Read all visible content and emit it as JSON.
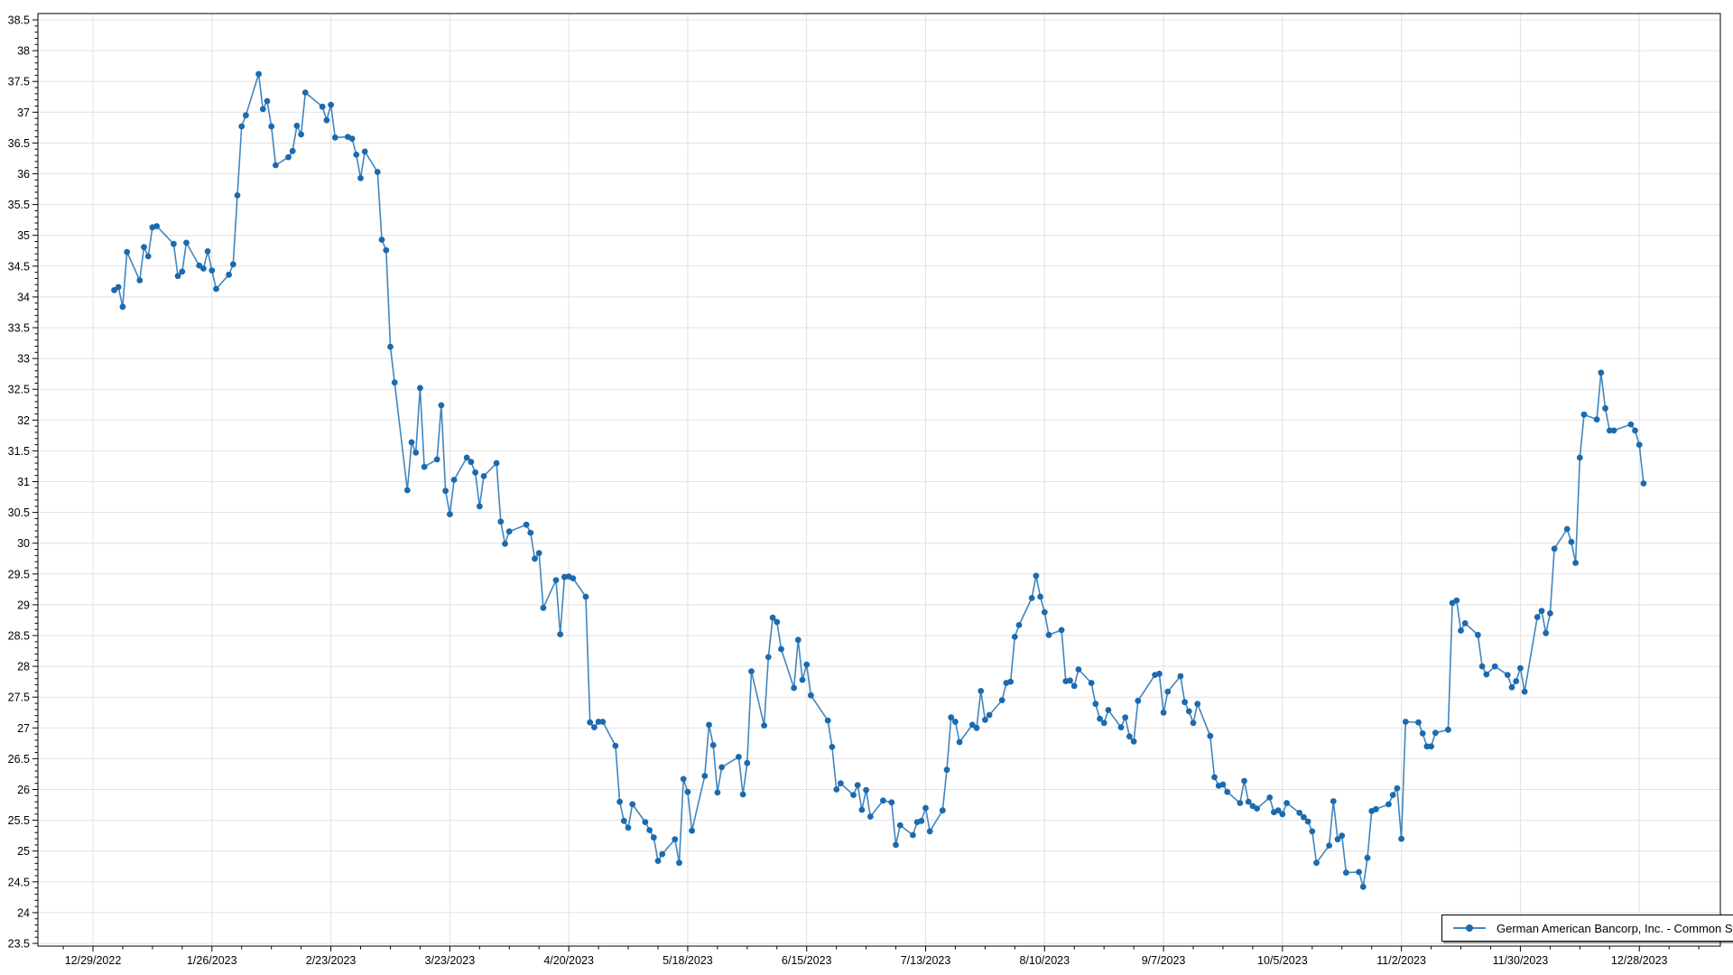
{
  "chart_data": {
    "type": "line",
    "title": "",
    "xlabel": "",
    "ylabel": "",
    "grid": true,
    "legend_position": "bottom-right",
    "line_color": "#4186c0",
    "marker_color": "#1b6aae",
    "gridline_color": "#e1e1e1",
    "axis_color": "#000000",
    "y_axis": {
      "min": 23.5,
      "max": 38.5,
      "major_step": 0.5,
      "minor_step": 0.1,
      "tick_labels": [
        "23.5",
        "24",
        "24.5",
        "25",
        "25.5",
        "26",
        "26.5",
        "27",
        "27.5",
        "28",
        "28.5",
        "29",
        "29.5",
        "30",
        "30.5",
        "31",
        "31.5",
        "32",
        "32.5",
        "33",
        "33.5",
        "34",
        "34.5",
        "35",
        "35.5",
        "36",
        "36.5",
        "37",
        "37.5",
        "38",
        "38.5"
      ]
    },
    "x_axis": {
      "tick_interval_days": 28,
      "minor_interval_days": 7,
      "tick_labels": [
        "12/29/2022",
        "1/26/2023",
        "2/23/2023",
        "3/23/2023",
        "4/20/2023",
        "5/18/2023",
        "6/15/2023",
        "7/13/2023",
        "8/10/2023",
        "9/7/2023",
        "10/5/2023",
        "11/2/2023",
        "11/30/2023",
        "12/28/2023"
      ]
    },
    "series": [
      {
        "name": "German American Bancorp, Inc. - Common Stock",
        "points": [
          [
            "1/3/2023",
            34.11
          ],
          [
            "1/4/2023",
            34.16
          ],
          [
            "1/5/2023",
            33.84
          ],
          [
            "1/6/2023",
            34.73
          ],
          [
            "1/9/2023",
            34.27
          ],
          [
            "1/10/2023",
            34.81
          ],
          [
            "1/11/2023",
            34.66
          ],
          [
            "1/12/2023",
            35.13
          ],
          [
            "1/13/2023",
            35.15
          ],
          [
            "1/17/2023",
            34.86
          ],
          [
            "1/18/2023",
            34.34
          ],
          [
            "1/19/2023",
            34.41
          ],
          [
            "1/20/2023",
            34.88
          ],
          [
            "1/23/2023",
            34.51
          ],
          [
            "1/24/2023",
            34.46
          ],
          [
            "1/25/2023",
            34.74
          ],
          [
            "1/26/2023",
            34.43
          ],
          [
            "1/27/2023",
            34.13
          ],
          [
            "1/30/2023",
            34.36
          ],
          [
            "1/31/2023",
            34.53
          ],
          [
            "2/1/2023",
            35.65
          ],
          [
            "2/2/2023",
            36.77
          ],
          [
            "2/3/2023",
            36.95
          ],
          [
            "2/6/2023",
            37.62
          ],
          [
            "2/7/2023",
            37.05
          ],
          [
            "2/8/2023",
            37.18
          ],
          [
            "2/9/2023",
            36.77
          ],
          [
            "2/10/2023",
            36.14
          ],
          [
            "2/13/2023",
            36.27
          ],
          [
            "2/14/2023",
            36.37
          ],
          [
            "2/15/2023",
            36.78
          ],
          [
            "2/16/2023",
            36.64
          ],
          [
            "2/17/2023",
            37.32
          ],
          [
            "2/21/2023",
            37.09
          ],
          [
            "2/22/2023",
            36.87
          ],
          [
            "2/23/2023",
            37.12
          ],
          [
            "2/24/2023",
            36.59
          ],
          [
            "2/27/2023",
            36.6
          ],
          [
            "2/28/2023",
            36.57
          ],
          [
            "3/1/2023",
            36.31
          ],
          [
            "3/2/2023",
            35.93
          ],
          [
            "3/3/2023",
            36.36
          ],
          [
            "3/6/2023",
            36.03
          ],
          [
            "3/7/2023",
            34.93
          ],
          [
            "3/8/2023",
            34.76
          ],
          [
            "3/9/2023",
            33.19
          ],
          [
            "3/10/2023",
            32.61
          ],
          [
            "3/13/2023",
            30.86
          ],
          [
            "3/14/2023",
            31.64
          ],
          [
            "3/15/2023",
            31.47
          ],
          [
            "3/16/2023",
            32.52
          ],
          [
            "3/17/2023",
            31.24
          ],
          [
            "3/20/2023",
            31.36
          ],
          [
            "3/21/2023",
            32.24
          ],
          [
            "3/22/2023",
            30.85
          ],
          [
            "3/23/2023",
            30.47
          ],
          [
            "3/24/2023",
            31.03
          ],
          [
            "3/27/2023",
            31.39
          ],
          [
            "3/28/2023",
            31.32
          ],
          [
            "3/29/2023",
            31.15
          ],
          [
            "3/30/2023",
            30.6
          ],
          [
            "3/31/2023",
            31.09
          ],
          [
            "4/3/2023",
            31.3
          ],
          [
            "4/4/2023",
            30.35
          ],
          [
            "4/5/2023",
            29.99
          ],
          [
            "4/6/2023",
            30.19
          ],
          [
            "4/10/2023",
            30.3
          ],
          [
            "4/11/2023",
            30.17
          ],
          [
            "4/12/2023",
            29.75
          ],
          [
            "4/13/2023",
            29.84
          ],
          [
            "4/14/2023",
            28.95
          ],
          [
            "4/17/2023",
            29.4
          ],
          [
            "4/18/2023",
            28.52
          ],
          [
            "4/19/2023",
            29.45
          ],
          [
            "4/20/2023",
            29.46
          ],
          [
            "4/21/2023",
            29.43
          ],
          [
            "4/24/2023",
            29.13
          ],
          [
            "4/25/2023",
            27.09
          ],
          [
            "4/26/2023",
            27.01
          ],
          [
            "4/27/2023",
            27.1
          ],
          [
            "4/28/2023",
            27.1
          ],
          [
            "5/1/2023",
            26.71
          ],
          [
            "5/2/2023",
            25.8
          ],
          [
            "5/3/2023",
            25.49
          ],
          [
            "5/4/2023",
            25.38
          ],
          [
            "5/5/2023",
            25.76
          ],
          [
            "5/8/2023",
            25.47
          ],
          [
            "5/9/2023",
            25.34
          ],
          [
            "5/10/2023",
            25.22
          ],
          [
            "5/11/2023",
            24.84
          ],
          [
            "5/12/2023",
            24.95
          ],
          [
            "5/15/2023",
            25.19
          ],
          [
            "5/16/2023",
            24.81
          ],
          [
            "5/17/2023",
            26.17
          ],
          [
            "5/18/2023",
            25.96
          ],
          [
            "5/19/2023",
            25.33
          ],
          [
            "5/22/2023",
            26.22
          ],
          [
            "5/23/2023",
            27.05
          ],
          [
            "5/24/2023",
            26.72
          ],
          [
            "5/25/2023",
            25.95
          ],
          [
            "5/26/2023",
            26.36
          ],
          [
            "5/30/2023",
            26.53
          ],
          [
            "5/31/2023",
            25.92
          ],
          [
            "6/1/2023",
            26.43
          ],
          [
            "6/2/2023",
            27.92
          ],
          [
            "6/5/2023",
            27.04
          ],
          [
            "6/6/2023",
            28.15
          ],
          [
            "6/7/2023",
            28.79
          ],
          [
            "6/8/2023",
            28.72
          ],
          [
            "6/9/2023",
            28.28
          ],
          [
            "6/12/2023",
            27.65
          ],
          [
            "6/13/2023",
            28.43
          ],
          [
            "6/14/2023",
            27.78
          ],
          [
            "6/15/2023",
            28.03
          ],
          [
            "6/16/2023",
            27.53
          ],
          [
            "6/20/2023",
            27.12
          ],
          [
            "6/21/2023",
            26.69
          ],
          [
            "6/22/2023",
            26.0
          ],
          [
            "6/23/2023",
            26.1
          ],
          [
            "6/26/2023",
            25.91
          ],
          [
            "6/27/2023",
            26.07
          ],
          [
            "6/28/2023",
            25.67
          ],
          [
            "6/29/2023",
            25.99
          ],
          [
            "6/30/2023",
            25.56
          ],
          [
            "7/3/2023",
            25.82
          ],
          [
            "7/5/2023",
            25.79
          ],
          [
            "7/6/2023",
            25.1
          ],
          [
            "7/7/2023",
            25.42
          ],
          [
            "7/10/2023",
            25.26
          ],
          [
            "7/11/2023",
            25.47
          ],
          [
            "7/12/2023",
            25.49
          ],
          [
            "7/13/2023",
            25.7
          ],
          [
            "7/14/2023",
            25.32
          ],
          [
            "7/17/2023",
            25.66
          ],
          [
            "7/18/2023",
            26.32
          ],
          [
            "7/19/2023",
            27.17
          ],
          [
            "7/20/2023",
            27.1
          ],
          [
            "7/21/2023",
            26.77
          ],
          [
            "7/24/2023",
            27.05
          ],
          [
            "7/25/2023",
            27.0
          ],
          [
            "7/26/2023",
            27.6
          ],
          [
            "7/27/2023",
            27.13
          ],
          [
            "7/28/2023",
            27.21
          ],
          [
            "7/31/2023",
            27.45
          ],
          [
            "8/1/2023",
            27.73
          ],
          [
            "8/2/2023",
            27.75
          ],
          [
            "8/3/2023",
            28.48
          ],
          [
            "8/4/2023",
            28.67
          ],
          [
            "8/7/2023",
            29.11
          ],
          [
            "8/8/2023",
            29.47
          ],
          [
            "8/9/2023",
            29.13
          ],
          [
            "8/10/2023",
            28.88
          ],
          [
            "8/11/2023",
            28.51
          ],
          [
            "8/14/2023",
            28.59
          ],
          [
            "8/15/2023",
            27.76
          ],
          [
            "8/16/2023",
            27.77
          ],
          [
            "8/17/2023",
            27.68
          ],
          [
            "8/18/2023",
            27.95
          ],
          [
            "8/21/2023",
            27.73
          ],
          [
            "8/22/2023",
            27.39
          ],
          [
            "8/23/2023",
            27.15
          ],
          [
            "8/24/2023",
            27.08
          ],
          [
            "8/25/2023",
            27.29
          ],
          [
            "8/28/2023",
            27.01
          ],
          [
            "8/29/2023",
            27.17
          ],
          [
            "8/30/2023",
            26.86
          ],
          [
            "8/31/2023",
            26.78
          ],
          [
            "9/1/2023",
            27.44
          ],
          [
            "9/5/2023",
            27.86
          ],
          [
            "9/6/2023",
            27.88
          ],
          [
            "9/7/2023",
            27.25
          ],
          [
            "9/8/2023",
            27.59
          ],
          [
            "9/11/2023",
            27.84
          ],
          [
            "9/12/2023",
            27.42
          ],
          [
            "9/13/2023",
            27.27
          ],
          [
            "9/14/2023",
            27.08
          ],
          [
            "9/15/2023",
            27.39
          ],
          [
            "9/18/2023",
            26.87
          ],
          [
            "9/19/2023",
            26.2
          ],
          [
            "9/20/2023",
            26.06
          ],
          [
            "9/21/2023",
            26.08
          ],
          [
            "9/22/2023",
            25.96
          ],
          [
            "9/25/2023",
            25.78
          ],
          [
            "9/26/2023",
            26.14
          ],
          [
            "9/27/2023",
            25.8
          ],
          [
            "9/28/2023",
            25.73
          ],
          [
            "9/29/2023",
            25.69
          ],
          [
            "10/2/2023",
            25.87
          ],
          [
            "10/3/2023",
            25.63
          ],
          [
            "10/4/2023",
            25.66
          ],
          [
            "10/5/2023",
            25.6
          ],
          [
            "10/6/2023",
            25.78
          ],
          [
            "10/9/2023",
            25.62
          ],
          [
            "10/10/2023",
            25.55
          ],
          [
            "10/11/2023",
            25.48
          ],
          [
            "10/12/2023",
            25.32
          ],
          [
            "10/13/2023",
            24.81
          ],
          [
            "10/16/2023",
            25.09
          ],
          [
            "10/17/2023",
            25.81
          ],
          [
            "10/18/2023",
            25.19
          ],
          [
            "10/19/2023",
            25.25
          ],
          [
            "10/20/2023",
            24.65
          ],
          [
            "10/23/2023",
            24.66
          ],
          [
            "10/24/2023",
            24.42
          ],
          [
            "10/25/2023",
            24.89
          ],
          [
            "10/26/2023",
            25.65
          ],
          [
            "10/27/2023",
            25.68
          ],
          [
            "10/30/2023",
            25.76
          ],
          [
            "10/31/2023",
            25.91
          ],
          [
            "11/1/2023",
            26.02
          ],
          [
            "11/2/2023",
            25.2
          ],
          [
            "11/3/2023",
            27.1
          ],
          [
            "11/6/2023",
            27.09
          ],
          [
            "11/7/2023",
            26.91
          ],
          [
            "11/8/2023",
            26.7
          ],
          [
            "11/9/2023",
            26.7
          ],
          [
            "11/10/2023",
            26.92
          ],
          [
            "11/13/2023",
            26.97
          ],
          [
            "11/14/2023",
            29.03
          ],
          [
            "11/15/2023",
            29.07
          ],
          [
            "11/16/2023",
            28.58
          ],
          [
            "11/17/2023",
            28.7
          ],
          [
            "11/20/2023",
            28.51
          ],
          [
            "11/21/2023",
            28.0
          ],
          [
            "11/22/2023",
            27.87
          ],
          [
            "11/24/2023",
            28.0
          ],
          [
            "11/27/2023",
            27.86
          ],
          [
            "11/28/2023",
            27.66
          ],
          [
            "11/29/2023",
            27.76
          ],
          [
            "11/30/2023",
            27.97
          ],
          [
            "12/1/2023",
            27.59
          ],
          [
            "12/4/2023",
            28.8
          ],
          [
            "12/5/2023",
            28.9
          ],
          [
            "12/6/2023",
            28.54
          ],
          [
            "12/7/2023",
            28.86
          ],
          [
            "12/8/2023",
            29.91
          ],
          [
            "12/11/2023",
            30.23
          ],
          [
            "12/12/2023",
            30.02
          ],
          [
            "12/13/2023",
            29.68
          ],
          [
            "12/14/2023",
            31.39
          ],
          [
            "12/15/2023",
            32.09
          ],
          [
            "12/18/2023",
            32.01
          ],
          [
            "12/19/2023",
            32.77
          ],
          [
            "12/20/2023",
            32.19
          ],
          [
            "12/21/2023",
            31.83
          ],
          [
            "12/22/2023",
            31.83
          ],
          [
            "12/26/2023",
            31.93
          ],
          [
            "12/27/2023",
            31.83
          ],
          [
            "12/28/2023",
            31.6
          ],
          [
            "12/29/2023",
            30.97
          ]
        ]
      }
    ]
  },
  "legend": {
    "label": "German American Bancorp, Inc. - Common Stock"
  }
}
